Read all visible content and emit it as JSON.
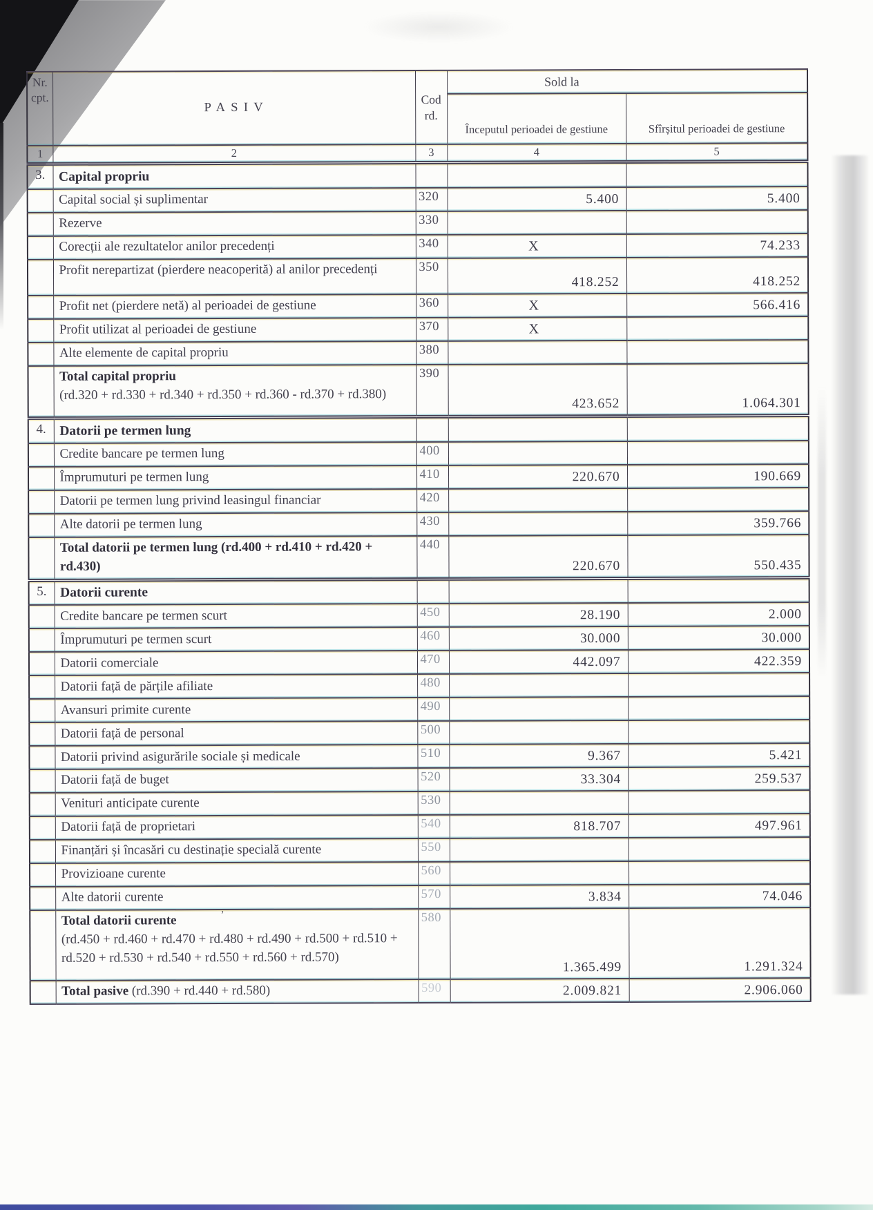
{
  "document": {
    "type": "scanned balance sheet (liabilities page)",
    "table_header": {
      "col_nr_line1": "Nr.",
      "col_nr_line2": "cpt.",
      "col_pasiv": "PASIV",
      "col_cod_line1": "Cod",
      "col_cod_line2": "rd.",
      "sold_la": "Sold la",
      "col_begin": "Începutul perioadei de gestiune",
      "col_end": "Sfîrșitul perioadei de gestiune",
      "col_numbers": [
        "1",
        "2",
        "3",
        "4",
        "5"
      ]
    },
    "rows": [
      {
        "type": "section",
        "num": "3.",
        "label": "Capital propriu"
      },
      {
        "type": "item",
        "label": "Capital social și suplimentar",
        "code": "320",
        "col4": "5.400",
        "col5": "5.400"
      },
      {
        "type": "item",
        "label": "Rezerve",
        "code": "330",
        "col4": "",
        "col5": ""
      },
      {
        "type": "item",
        "label": "Corecții ale rezultatelor anilor precedenți",
        "code": "340",
        "col4": "X",
        "col5": "74.233"
      },
      {
        "type": "item",
        "label": "Profit nerepartizat (pierdere neacoperită) al anilor precedenți",
        "code": "350",
        "col4": "418.252",
        "col5": "418.252",
        "minh": 52
      },
      {
        "type": "item",
        "label": "Profit net (pierdere netă) al perioadei de gestiune",
        "code": "360",
        "col4": "X",
        "col5": "566.416"
      },
      {
        "type": "item",
        "label": "Profit utilizat al perioadei de gestiune",
        "code": "370",
        "col4": "X",
        "col5": ""
      },
      {
        "type": "item",
        "label": "Alte elemente de capital propriu",
        "code": "380",
        "col4": "",
        "col5": ""
      },
      {
        "type": "total",
        "label": "Total capital propriu",
        "formula": "(rd.320 + rd.330 + rd.340 + rd.350 + rd.360 - rd.370 + rd.380)",
        "code": "390",
        "col4": "423.652",
        "col5": "1.064.301",
        "minh": 76
      },
      {
        "type": "section",
        "num": "4.",
        "label": "Datorii pe termen lung"
      },
      {
        "type": "item",
        "label": "Credite bancare pe termen lung",
        "code": "400",
        "col4": "",
        "col5": ""
      },
      {
        "type": "item",
        "label": "Împrumuturi pe termen lung",
        "code": "410",
        "col4": "220.670",
        "col5": "190.669"
      },
      {
        "type": "item",
        "label": "Datorii pe termen lung privind leasingul financiar",
        "code": "420",
        "col4": "",
        "col5": ""
      },
      {
        "type": "item",
        "label": "Alte datorii pe termen lung",
        "code": "430",
        "col4": "",
        "col5": "359.766"
      },
      {
        "type": "total",
        "label": "Total datorii pe termen lung (rd.400 + rd.410 + rd.420 + rd.430)",
        "code": "440",
        "col4": "220.670",
        "col5": "550.435",
        "minh": 54
      },
      {
        "type": "section",
        "num": "5.",
        "label": "Datorii curente"
      },
      {
        "type": "item",
        "label": "Credite bancare pe termen scurt",
        "code": "450",
        "col4": "28.190",
        "col5": "2.000"
      },
      {
        "type": "item",
        "label": "Împrumuturi pe termen scurt",
        "code": "460",
        "col4": "30.000",
        "col5": "30.000"
      },
      {
        "type": "item",
        "label": "Datorii comerciale",
        "code": "470",
        "col4": "442.097",
        "col5": "422.359"
      },
      {
        "type": "item",
        "label": "Datorii față de părțile afiliate",
        "code": "480",
        "col4": "",
        "col5": ""
      },
      {
        "type": "item",
        "label": "Avansuri primite curente",
        "code": "490",
        "col4": "",
        "col5": ""
      },
      {
        "type": "item",
        "label": "Datorii față de personal",
        "code": "500",
        "col4": "",
        "col5": ""
      },
      {
        "type": "item",
        "label": "Datorii privind asigurările sociale și medicale",
        "code": "510",
        "col4": "9.367",
        "col5": "5.421"
      },
      {
        "type": "item",
        "label": "Datorii față de buget",
        "code": "520",
        "col4": "33.304",
        "col5": "259.537"
      },
      {
        "type": "item",
        "label": "Venituri anticipate curente",
        "code": "530",
        "col4": "",
        "col5": ""
      },
      {
        "type": "item",
        "label": "Datorii față de proprietari",
        "code": "540",
        "col4": "818.707",
        "col5": "497.961"
      },
      {
        "type": "item",
        "label": "Finanțări și încasări cu destinație specială curente",
        "code": "550",
        "col4": "",
        "col5": ""
      },
      {
        "type": "item",
        "label": "Provizioane curente",
        "code": "560",
        "col4": "",
        "col5": ""
      },
      {
        "type": "item",
        "label": "Alte datorii curente",
        "code": "570",
        "col4": "3.834",
        "col5": "74.046"
      },
      {
        "type": "total",
        "label": "Total datorii curente",
        "note": "ʼ",
        "formula": "(rd.450 + rd.460 + rd.470 + rd.480 + rd.490 + rd.500 + rd.510 + rd.520 +  rd.530 + rd.540 + rd.550 + rd.560 + rd.570)",
        "code": "580",
        "col4": "1.365.499",
        "col5": "1.291.324",
        "minh": 102
      },
      {
        "type": "total",
        "label": "Total pasive",
        "formula_inline": "(rd.390 + rd.440 + rd.580)",
        "code": "590",
        "col4": "2.009.821",
        "col5": "2.906.060"
      }
    ],
    "colors": {
      "separator_line": "#4c4459",
      "fringe_cyan": "#28aabe",
      "fringe_yellow": "#d7be3c",
      "bottom_strip_left": "#3e4c9e",
      "bottom_strip_right": "#3fa89b",
      "corner_fold_gray": "#9a9a9c",
      "corner_fold_black": "#141417"
    }
  }
}
